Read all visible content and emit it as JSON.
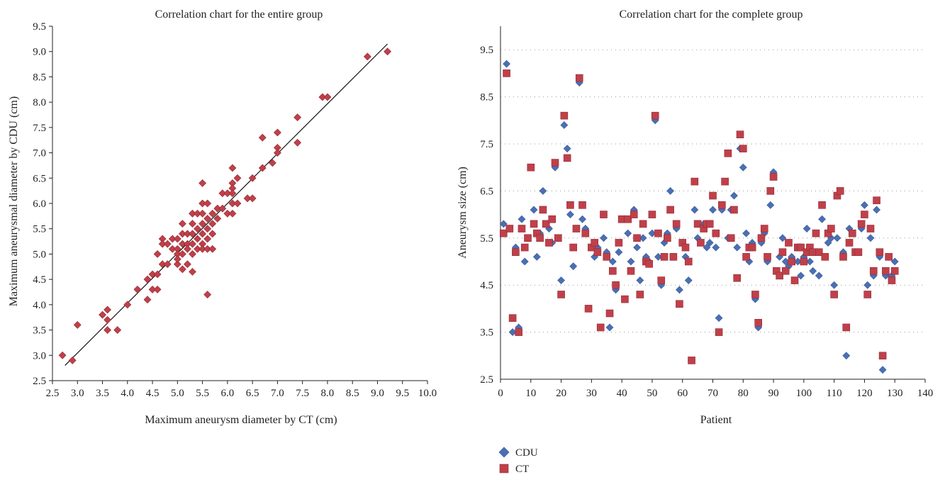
{
  "chart_data": [
    {
      "type": "scatter",
      "title": "Correlation chart for the entire group",
      "xlabel": "Maximum aneurysm diameter by CT (cm)",
      "ylabel": "Maximum aneurysmal diameter by CDU (cm)",
      "xlim": [
        2.5,
        10.0
      ],
      "ylim": [
        2.5,
        9.5
      ],
      "xticks": [
        "2.5",
        "3.0",
        "3.5",
        "4.0",
        "4.5",
        "5.0",
        "5.5",
        "6.0",
        "6.5",
        "7.0",
        "7.5",
        "8.0",
        "8.5",
        "9.0",
        "9.5",
        "10.0"
      ],
      "yticks": [
        "2.5",
        "3.0",
        "3.5",
        "4.0",
        "4.5",
        "5.0",
        "5.5",
        "6.0",
        "6.5",
        "7.0",
        "7.5",
        "8.0",
        "8.5",
        "9.0",
        "9.5"
      ],
      "grid": false,
      "marker_color": "#c0404a",
      "trendline": {
        "x": [
          2.75,
          9.2
        ],
        "y": [
          2.8,
          9.15
        ]
      },
      "points": [
        [
          2.7,
          3.0
        ],
        [
          2.9,
          2.9
        ],
        [
          3.0,
          3.6
        ],
        [
          3.5,
          3.8
        ],
        [
          3.6,
          3.9
        ],
        [
          3.6,
          3.7
        ],
        [
          3.6,
          3.5
        ],
        [
          3.8,
          3.5
        ],
        [
          4.0,
          4.0
        ],
        [
          4.2,
          4.3
        ],
        [
          4.4,
          4.1
        ],
        [
          4.4,
          4.5
        ],
        [
          4.5,
          4.6
        ],
        [
          4.5,
          4.3
        ],
        [
          4.6,
          4.3
        ],
        [
          4.6,
          4.6
        ],
        [
          4.6,
          5.0
        ],
        [
          4.7,
          5.3
        ],
        [
          4.7,
          5.2
        ],
        [
          4.7,
          4.8
        ],
        [
          4.8,
          4.8
        ],
        [
          4.8,
          5.2
        ],
        [
          4.9,
          5.3
        ],
        [
          4.9,
          5.1
        ],
        [
          5.0,
          5.3
        ],
        [
          5.0,
          5.1
        ],
        [
          5.0,
          5.0
        ],
        [
          5.0,
          4.8
        ],
        [
          5.0,
          4.9
        ],
        [
          5.1,
          5.6
        ],
        [
          5.1,
          5.4
        ],
        [
          5.1,
          5.2
        ],
        [
          5.1,
          5.0
        ],
        [
          5.1,
          4.7
        ],
        [
          5.2,
          5.4
        ],
        [
          5.2,
          5.2
        ],
        [
          5.2,
          5.1
        ],
        [
          5.2,
          4.8
        ],
        [
          5.3,
          5.8
        ],
        [
          5.3,
          5.6
        ],
        [
          5.3,
          5.4
        ],
        [
          5.3,
          5.2
        ],
        [
          5.3,
          5.0
        ],
        [
          5.3,
          4.65
        ],
        [
          5.4,
          5.8
        ],
        [
          5.4,
          5.5
        ],
        [
          5.4,
          5.3
        ],
        [
          5.4,
          5.1
        ],
        [
          5.5,
          6.4
        ],
        [
          5.5,
          5.8
        ],
        [
          5.5,
          5.6
        ],
        [
          5.5,
          5.4
        ],
        [
          5.5,
          5.2
        ],
        [
          5.5,
          5.1
        ],
        [
          5.5,
          6.0
        ],
        [
          5.6,
          5.7
        ],
        [
          5.6,
          5.5
        ],
        [
          5.6,
          5.3
        ],
        [
          5.6,
          5.1
        ],
        [
          5.6,
          4.2
        ],
        [
          5.6,
          6.0
        ],
        [
          5.7,
          5.8
        ],
        [
          5.7,
          5.6
        ],
        [
          5.7,
          5.4
        ],
        [
          5.7,
          5.1
        ],
        [
          5.8,
          5.7
        ],
        [
          5.8,
          5.9
        ],
        [
          5.9,
          6.2
        ],
        [
          5.9,
          5.9
        ],
        [
          6.0,
          6.2
        ],
        [
          6.0,
          5.8
        ],
        [
          6.1,
          6.7
        ],
        [
          6.1,
          6.4
        ],
        [
          6.1,
          6.3
        ],
        [
          6.1,
          6.2
        ],
        [
          6.1,
          6.0
        ],
        [
          6.1,
          5.8
        ],
        [
          6.2,
          6.5
        ],
        [
          6.2,
          6.0
        ],
        [
          6.4,
          6.1
        ],
        [
          6.5,
          6.5
        ],
        [
          6.5,
          6.1
        ],
        [
          6.7,
          7.3
        ],
        [
          6.7,
          6.7
        ],
        [
          6.9,
          6.8
        ],
        [
          7.0,
          7.4
        ],
        [
          7.0,
          7.1
        ],
        [
          7.0,
          7.0
        ],
        [
          7.4,
          7.7
        ],
        [
          7.4,
          7.2
        ],
        [
          7.9,
          8.1
        ],
        [
          8.0,
          8.1
        ],
        [
          8.8,
          8.9
        ],
        [
          9.2,
          9.0
        ]
      ]
    },
    {
      "type": "scatter",
      "title": "Correlation chart for the complete group",
      "xlabel": "Patient",
      "ylabel": "Aneurysm size (cm)",
      "xlim": [
        0,
        140
      ],
      "ylim": [
        2.5,
        10.0
      ],
      "xticks": [
        "0",
        "10",
        "20",
        "30",
        "40",
        "50",
        "60",
        "70",
        "80",
        "90",
        "100",
        "110",
        "120",
        "130",
        "140"
      ],
      "yticks": [
        "2.5",
        "3.5",
        "4.5",
        "5.5",
        "6.5",
        "7.5",
        "8.5",
        "9.5"
      ],
      "grid": true,
      "legend_position": "bottom",
      "series": [
        {
          "name": "CDU",
          "color": "#4a6fb5",
          "marker": "diamond",
          "values": [
            5.8,
            9.2,
            5.7,
            3.5,
            5.3,
            3.6,
            5.9,
            5.0,
            5.5,
            7.0,
            6.1,
            5.1,
            5.6,
            6.5,
            5.8,
            5.7,
            5.4,
            7.0,
            5.5,
            4.6,
            7.9,
            7.4,
            6.0,
            4.9,
            5.7,
            8.8,
            5.9,
            5.7,
            4.0,
            5.3,
            5.1,
            5.3,
            3.6,
            5.5,
            5.2,
            3.6,
            5.0,
            4.4,
            5.2,
            5.9,
            4.2,
            5.6,
            5.0,
            6.1,
            5.3,
            4.6,
            5.5,
            5.1,
            5.0,
            5.6,
            8.0,
            5.1,
            4.5,
            5.4,
            5.6,
            6.5,
            5.1,
            5.7,
            4.4,
            5.4,
            5.1,
            4.6,
            2.9,
            6.1,
            5.5,
            5.4,
            5.8,
            5.3,
            5.4,
            6.1,
            5.3,
            3.8,
            6.1,
            6.7,
            5.5,
            6.1,
            6.4,
            5.3,
            7.4,
            7.0,
            5.6,
            5.0,
            5.4,
            4.2,
            3.6,
            5.4,
            5.6,
            5.0,
            6.2,
            6.9,
            4.8,
            5.1,
            5.5,
            5.0,
            4.9,
            5.1,
            4.6,
            5.0,
            4.7,
            5.1,
            5.7,
            5.0,
            4.8,
            5.2,
            4.7,
            5.9,
            5.1,
            5.4,
            5.5,
            4.5,
            5.5,
            6.5,
            5.2,
            3.0,
            5.7,
            5.6,
            5.2,
            5.2,
            5.7,
            6.2,
            4.5,
            5.5,
            4.7,
            6.1,
            5.1,
            2.7,
            4.7,
            5.1,
            4.7,
            5.0
          ],
          "x": [
            1,
            2,
            3,
            4,
            5,
            6,
            7,
            8,
            9,
            10,
            11,
            12,
            13,
            14,
            15,
            16,
            17,
            18,
            19,
            20,
            21,
            22,
            23,
            24,
            25,
            26,
            27,
            28,
            29,
            30,
            31,
            32,
            33,
            34,
            35,
            36,
            37,
            38,
            39,
            40,
            41,
            42,
            43,
            44,
            45,
            46,
            47,
            48,
            49,
            50,
            51,
            52,
            53,
            54,
            55,
            56,
            57,
            58,
            59,
            60,
            61,
            62,
            63,
            64,
            65,
            66,
            67,
            68,
            69,
            70,
            71,
            72,
            73,
            74,
            75,
            76,
            77,
            78,
            79,
            80,
            81,
            82,
            83,
            84,
            85,
            86,
            87,
            88,
            89,
            90,
            91,
            92,
            93,
            94,
            95,
            96,
            97,
            98,
            99,
            100,
            101,
            102,
            103,
            104,
            105,
            106,
            107,
            108,
            109,
            110,
            111,
            112,
            113,
            114,
            115,
            116,
            117,
            118,
            119,
            120,
            121,
            122,
            123,
            124,
            125,
            126,
            127,
            128,
            129,
            130
          ]
        },
        {
          "name": "CT",
          "color": "#c0404a",
          "marker": "square",
          "values": [
            5.6,
            9.0,
            5.7,
            3.8,
            5.2,
            3.5,
            5.7,
            5.3,
            5.5,
            7.0,
            5.8,
            5.6,
            5.5,
            6.1,
            5.8,
            5.4,
            5.9,
            7.1,
            5.5,
            4.3,
            8.1,
            7.2,
            6.2,
            5.3,
            5.7,
            8.9,
            6.2,
            5.6,
            4.0,
            5.3,
            5.4,
            5.2,
            3.6,
            6.0,
            5.1,
            3.9,
            4.8,
            4.5,
            5.4,
            5.9,
            4.2,
            5.9,
            4.8,
            6.0,
            5.5,
            4.3,
            5.8,
            5.0,
            4.95,
            6.0,
            8.1,
            5.6,
            4.6,
            5.1,
            5.5,
            6.1,
            5.1,
            5.8,
            4.1,
            5.4,
            5.3,
            5.0,
            2.9,
            6.7,
            5.8,
            5.4,
            5.7,
            5.8,
            5.8,
            6.4,
            5.6,
            3.5,
            6.2,
            6.7,
            7.3,
            5.5,
            6.1,
            4.65,
            7.7,
            7.4,
            5.1,
            5.3,
            5.3,
            4.3,
            3.7,
            5.5,
            5.7,
            5.1,
            6.5,
            6.8,
            4.8,
            4.7,
            5.2,
            4.8,
            5.4,
            5.0,
            4.6,
            5.3,
            5.3,
            5.0,
            5.2,
            5.3,
            5.2,
            5.6,
            5.2,
            6.2,
            5.1,
            5.6,
            5.7,
            4.3,
            6.4,
            6.5,
            5.1,
            3.6,
            5.4,
            5.6,
            5.2,
            5.2,
            5.8,
            6.0,
            4.3,
            5.7,
            4.8,
            6.3,
            5.2,
            3.0,
            4.8,
            5.1,
            4.6,
            4.8
          ],
          "x": [
            1,
            2,
            3,
            4,
            5,
            6,
            7,
            8,
            9,
            10,
            11,
            12,
            13,
            14,
            15,
            16,
            17,
            18,
            19,
            20,
            21,
            22,
            23,
            24,
            25,
            26,
            27,
            28,
            29,
            30,
            31,
            32,
            33,
            34,
            35,
            36,
            37,
            38,
            39,
            40,
            41,
            42,
            43,
            44,
            45,
            46,
            47,
            48,
            49,
            50,
            51,
            52,
            53,
            54,
            55,
            56,
            57,
            58,
            59,
            60,
            61,
            62,
            63,
            64,
            65,
            66,
            67,
            68,
            69,
            70,
            71,
            72,
            73,
            74,
            75,
            76,
            77,
            78,
            79,
            80,
            81,
            82,
            83,
            84,
            85,
            86,
            87,
            88,
            89,
            90,
            91,
            92,
            93,
            94,
            95,
            96,
            97,
            98,
            99,
            100,
            101,
            102,
            103,
            104,
            105,
            106,
            107,
            108,
            109,
            110,
            111,
            112,
            113,
            114,
            115,
            116,
            117,
            118,
            119,
            120,
            121,
            122,
            123,
            124,
            125,
            126,
            127,
            128,
            129,
            130
          ]
        }
      ]
    }
  ]
}
